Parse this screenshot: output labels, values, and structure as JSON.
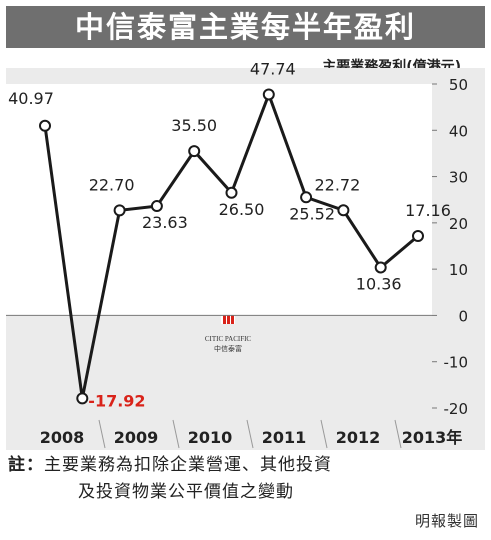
{
  "title": "中信泰富主業每半年盈利",
  "chart_data": {
    "type": "line",
    "title": "中信泰富主業每半年盈利",
    "ylabel": "主要業務盈利(億港元)",
    "ylim": [
      -20,
      50
    ],
    "yticks": [
      "50",
      "40",
      "30",
      "20",
      "10",
      "0",
      "-10",
      "-20"
    ],
    "categories": [
      "2008",
      "2009",
      "2010",
      "2011",
      "2012",
      "2013年"
    ],
    "points": [
      {
        "label": "40.97",
        "value": 40.97
      },
      {
        "label": "-17.92",
        "value": -17.92
      },
      {
        "label": "22.70",
        "value": 22.7
      },
      {
        "label": "23.63",
        "value": 23.63
      },
      {
        "label": "35.50",
        "value": 35.5
      },
      {
        "label": "26.50",
        "value": 26.5
      },
      {
        "label": "47.74",
        "value": 47.74
      },
      {
        "label": "25.52",
        "value": 25.52
      },
      {
        "label": "22.72",
        "value": 22.72
      },
      {
        "label": "10.36",
        "value": 10.36
      },
      {
        "label": "17.16",
        "value": 17.16
      }
    ],
    "grid": false,
    "colors": {
      "line": "#1a1a1a",
      "negative_label": "#d9231a",
      "plot_bg": "#ffffff",
      "panel_bg": "#ebebeb",
      "title_bg": "#6f6f6f"
    }
  },
  "logo": {
    "line1": "CITIC PACIFIC",
    "line2": "中信泰富"
  },
  "note": {
    "mark": "註：",
    "line1": "主要業務為扣除企業營運、其他投資",
    "line2": "及投資物業公平價值之變動"
  },
  "source": "明報製圖"
}
